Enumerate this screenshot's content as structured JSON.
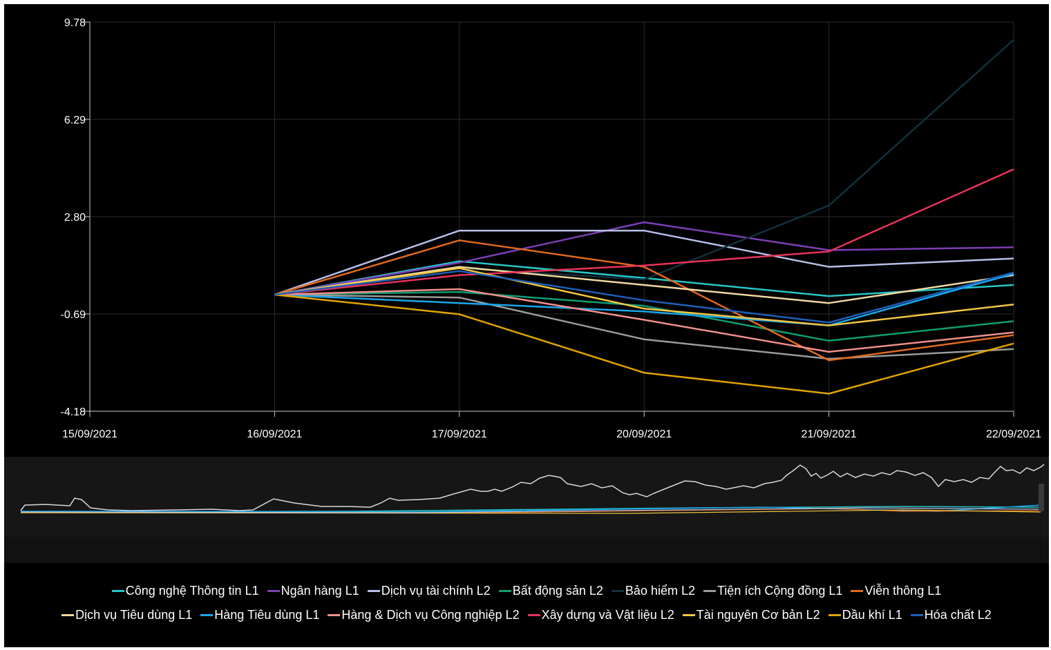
{
  "chart_data": {
    "type": "line",
    "x": [
      "15/09/2021",
      "16/09/2021",
      "17/09/2021",
      "20/09/2021",
      "21/09/2021",
      "22/09/2021"
    ],
    "ylim": [
      -4.18,
      9.78
    ],
    "y_ticks": [
      "9.78",
      "6.29",
      "2.80",
      "-0.69",
      "-4.18"
    ],
    "grid": true,
    "legend_position": "bottom",
    "series": [
      {
        "name": "Công nghệ Thông tin L1",
        "color": "#26c6c6",
        "values": [
          null,
          0,
          1.2,
          0.6,
          -0.05,
          0.35
        ]
      },
      {
        "name": "Ngân hàng L1",
        "color": "#7b3fb5",
        "values": [
          null,
          0,
          1.15,
          2.6,
          1.6,
          1.7
        ]
      },
      {
        "name": "Dịch vụ tài chính L2",
        "color": "#b8bfe8",
        "values": [
          null,
          0,
          2.3,
          2.3,
          1.0,
          1.3
        ]
      },
      {
        "name": "Bất động sản L2",
        "color": "#0f9d74",
        "values": [
          null,
          0,
          0.1,
          -0.4,
          -1.65,
          -0.95
        ]
      },
      {
        "name": "Bảo hiểm L2",
        "color": "#10323d",
        "values": [
          null,
          0,
          0.95,
          0.55,
          3.2,
          9.15
        ]
      },
      {
        "name": "Tiện ích Cộng đồng L1",
        "color": "#9b9b9b",
        "values": [
          null,
          0,
          -0.1,
          -1.6,
          -2.3,
          -1.95
        ]
      },
      {
        "name": "Viễn thông L1",
        "color": "#e06a1e",
        "values": [
          null,
          0,
          1.95,
          1.0,
          -2.35,
          -1.45
        ]
      },
      {
        "name": "Dịch vụ Tiêu dùng L1",
        "color": "#efd9a0",
        "values": [
          null,
          0,
          1.0,
          0.35,
          -0.3,
          0.7
        ]
      },
      {
        "name": "Hàng Tiêu dùng L1",
        "color": "#1aa7ec",
        "values": [
          null,
          0,
          -0.3,
          -0.6,
          -1.1,
          0.75
        ]
      },
      {
        "name": "Hàng & Dịch vụ Công nghiệp L2",
        "color": "#f0908a",
        "values": [
          null,
          0,
          0.2,
          -0.9,
          -2.05,
          -1.35
        ]
      },
      {
        "name": "Xây dựng và Vật liệu L2",
        "color": "#e8335a",
        "values": [
          null,
          0,
          0.7,
          1.05,
          1.55,
          4.5
        ]
      },
      {
        "name": "Tài nguyên Cơ bản L2",
        "color": "#f2c744",
        "values": [
          null,
          0,
          0.95,
          -0.5,
          -1.1,
          -0.35
        ]
      },
      {
        "name": "Dầu khí L1",
        "color": "#e0a400",
        "values": [
          null,
          0,
          -0.7,
          -2.8,
          -3.55,
          -1.75
        ]
      },
      {
        "name": "Hóa chất L2",
        "color": "#1f5fb8",
        "values": [
          null,
          0,
          0.85,
          -0.2,
          -1.0,
          0.8
        ]
      }
    ]
  }
}
